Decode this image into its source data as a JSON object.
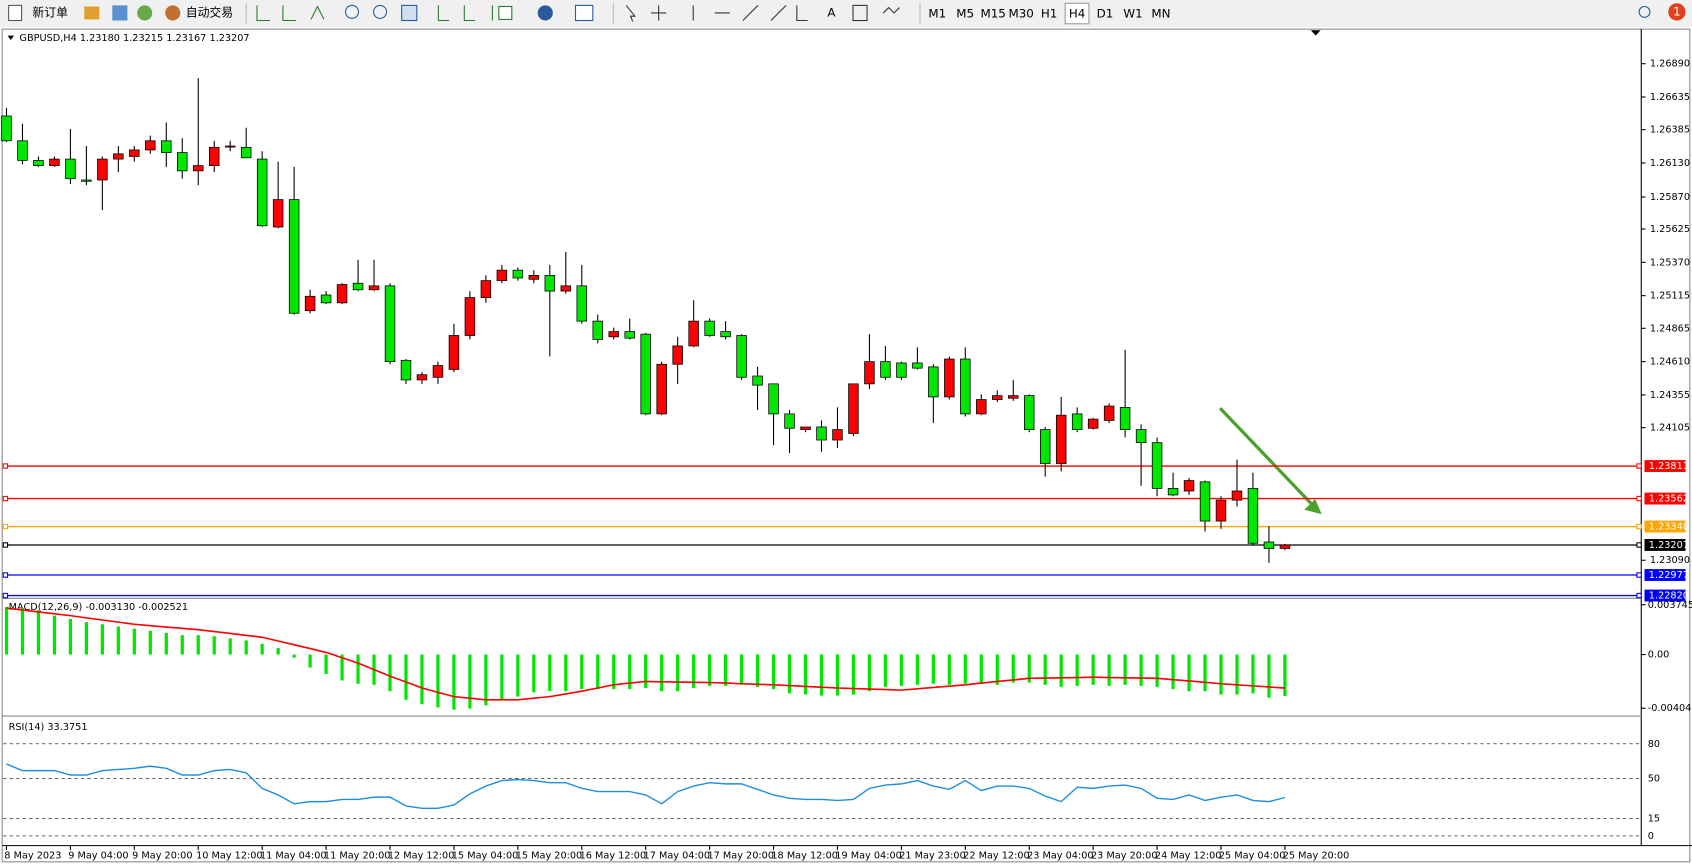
{
  "toolbar": {
    "buttons": [
      "新订单",
      "自动交易"
    ],
    "text_tool": "A",
    "timeframes": [
      "M1",
      "M5",
      "M15",
      "M30",
      "H1",
      "H4",
      "D1",
      "W1",
      "MN"
    ],
    "active_timeframe": 5,
    "notifications": 1
  },
  "chart_data": [
    {
      "type": "candlestick",
      "title": "GBPUSD,H4  1.23180 1.23215 1.23167 1.23207",
      "up_color": "#ff0000",
      "down_color": "#00e600",
      "categories": [
        "8 May 2023",
        null,
        null,
        null,
        "9 May 04:00",
        null,
        null,
        null,
        "9 May 20:00",
        null,
        null,
        null,
        "10 May 12:00",
        null,
        null,
        null,
        "11 May 04:00",
        null,
        null,
        null,
        "11 May 20:00",
        null,
        null,
        null,
        "12 May 12:00",
        null,
        null,
        null,
        "15 May 04:00",
        null,
        null,
        null,
        "15 May 20:00",
        null,
        null,
        null,
        "16 May 12:00",
        null,
        null,
        null,
        "17 May 04:00",
        null,
        null,
        null,
        "17 May 20:00",
        null,
        null,
        null,
        "18 May 12:00",
        null,
        null,
        null,
        "19 May 04:00",
        null,
        null,
        null,
        "21 May 23:00",
        null,
        null,
        null,
        "22 May 12:00",
        null,
        null,
        null,
        "23 May 04:00",
        null,
        null,
        null,
        "23 May 20:00",
        null,
        null,
        null,
        "24 May 12:00",
        null,
        null,
        null,
        "25 May 04:00",
        null,
        null,
        null,
        "25 May 20:00"
      ],
      "ohlc": [
        [
          1.2649,
          1.2655,
          1.2629,
          1.263
        ],
        [
          1.263,
          1.2643,
          1.2612,
          1.2615
        ],
        [
          1.2615,
          1.2618,
          1.261,
          1.2611
        ],
        [
          1.2611,
          1.2618,
          1.261,
          1.2616
        ],
        [
          1.2616,
          1.2639,
          1.2597,
          1.2601
        ],
        [
          1.26,
          1.2626,
          1.2596,
          1.2599
        ],
        [
          1.26,
          1.2618,
          1.2577,
          1.2616
        ],
        [
          1.2616,
          1.2626,
          1.2606,
          1.262
        ],
        [
          1.2618,
          1.2626,
          1.2614,
          1.2623
        ],
        [
          1.2623,
          1.2634,
          1.262,
          1.263
        ],
        [
          1.263,
          1.2644,
          1.261,
          1.2621
        ],
        [
          1.2621,
          1.2632,
          1.2601,
          1.2607
        ],
        [
          1.2607,
          1.2678,
          1.2596,
          1.2611
        ],
        [
          1.2611,
          1.263,
          1.2606,
          1.2625
        ],
        [
          1.2626,
          1.263,
          1.2622,
          1.2626
        ],
        [
          1.2625,
          1.264,
          1.2617,
          1.2617
        ],
        [
          1.2616,
          1.2622,
          1.2564,
          1.2565
        ],
        [
          1.2564,
          1.2614,
          1.2563,
          1.2585
        ],
        [
          1.2585,
          1.261,
          1.2497,
          1.2498
        ],
        [
          1.25,
          1.2516,
          1.2498,
          1.2511
        ],
        [
          1.2512,
          1.2515,
          1.2505,
          1.2506
        ],
        [
          1.2506,
          1.2521,
          1.2505,
          1.252
        ],
        [
          1.2521,
          1.2539,
          1.2515,
          1.2516
        ],
        [
          1.2516,
          1.2539,
          1.2515,
          1.2519
        ],
        [
          1.2519,
          1.2521,
          1.2459,
          1.2461
        ],
        [
          1.2462,
          1.2463,
          1.2444,
          1.2447
        ],
        [
          1.2447,
          1.2453,
          1.2444,
          1.2451
        ],
        [
          1.2449,
          1.2461,
          1.2444,
          1.2458
        ],
        [
          1.2455,
          1.249,
          1.2453,
          1.2481
        ],
        [
          1.2481,
          1.2515,
          1.2478,
          1.251
        ],
        [
          1.251,
          1.2527,
          1.2506,
          1.2523
        ],
        [
          1.2523,
          1.2535,
          1.2521,
          1.2531
        ],
        [
          1.2531,
          1.2533,
          1.2523,
          1.2525
        ],
        [
          1.2524,
          1.2531,
          1.2521,
          1.2527
        ],
        [
          1.2527,
          1.2535,
          1.2465,
          1.2515
        ],
        [
          1.2515,
          1.2545,
          1.2513,
          1.2519
        ],
        [
          1.2519,
          1.2535,
          1.249,
          1.2492
        ],
        [
          1.2492,
          1.2497,
          1.2475,
          1.2478
        ],
        [
          1.248,
          1.2487,
          1.2478,
          1.2484
        ],
        [
          1.2484,
          1.2494,
          1.2478,
          1.2479
        ],
        [
          1.2482,
          1.2483,
          1.242,
          1.2421
        ],
        [
          1.2421,
          1.2461,
          1.242,
          1.2459
        ],
        [
          1.2459,
          1.248,
          1.2444,
          1.2473
        ],
        [
          1.2473,
          1.2508,
          1.2472,
          1.2492
        ],
        [
          1.2492,
          1.2494,
          1.248,
          1.2481
        ],
        [
          1.2484,
          1.2492,
          1.2478,
          1.248
        ],
        [
          1.2481,
          1.2482,
          1.2447,
          1.2449
        ],
        [
          1.245,
          1.2457,
          1.2424,
          1.2443
        ],
        [
          1.2444,
          1.2444,
          1.2397,
          1.2421
        ],
        [
          1.2421,
          1.2424,
          1.2391,
          1.241
        ],
        [
          1.2409,
          1.2411,
          1.2407,
          1.2411
        ],
        [
          1.2411,
          1.2416,
          1.2392,
          1.2401
        ],
        [
          1.2401,
          1.2426,
          1.2395,
          1.2409
        ],
        [
          1.2406,
          1.2444,
          1.2404,
          1.2444
        ],
        [
          1.2444,
          1.2482,
          1.244,
          1.2461
        ],
        [
          1.2461,
          1.2473,
          1.2447,
          1.2449
        ],
        [
          1.246,
          1.2461,
          1.2447,
          1.2449
        ],
        [
          1.246,
          1.2472,
          1.2455,
          1.2456
        ],
        [
          1.2457,
          1.2459,
          1.2414,
          1.2434
        ],
        [
          1.2434,
          1.2465,
          1.2432,
          1.2463
        ],
        [
          1.2463,
          1.2472,
          1.2419,
          1.2421
        ],
        [
          1.2421,
          1.2436,
          1.242,
          1.2432
        ],
        [
          1.2432,
          1.2439,
          1.243,
          1.2435
        ],
        [
          1.2433,
          1.2447,
          1.2431,
          1.2435
        ],
        [
          1.2435,
          1.2436,
          1.2407,
          1.2409
        ],
        [
          1.2409,
          1.2411,
          1.2373,
          1.2383
        ],
        [
          1.2383,
          1.2434,
          1.2377,
          1.242
        ],
        [
          1.2421,
          1.2426,
          1.2407,
          1.2409
        ],
        [
          1.241,
          1.2418,
          1.2409,
          1.2417
        ],
        [
          1.2416,
          1.2429,
          1.2414,
          1.2427
        ],
        [
          1.2426,
          1.247,
          1.2403,
          1.2409
        ],
        [
          1.2409,
          1.2413,
          1.2366,
          1.2399
        ],
        [
          1.2399,
          1.2403,
          1.2358,
          1.2364
        ],
        [
          1.2364,
          1.2376,
          1.2358,
          1.2359
        ],
        [
          1.2362,
          1.2372,
          1.2359,
          1.237
        ],
        [
          1.2369,
          1.237,
          1.2331,
          1.2339
        ],
        [
          1.2339,
          1.2358,
          1.2333,
          1.2355
        ],
        [
          1.2355,
          1.2386,
          1.235,
          1.2362
        ],
        [
          1.2364,
          1.2376,
          1.2321,
          1.2322
        ],
        [
          1.2323,
          1.2335,
          1.2307,
          1.2318
        ],
        [
          1.2318,
          1.23215,
          1.23167,
          1.23207
        ]
      ],
      "ylim": [
        1.22807,
        1.27146
      ],
      "yticks": [
        {
          "value": 1.2689,
          "label": "1.26890"
        },
        1.26635,
        1.26385,
        {
          "value": 1.2613,
          "label": "1.26130"
        },
        {
          "value": 1.2587,
          "label": "1.25870"
        },
        1.25625,
        {
          "value": 1.2537,
          "label": "1.25370"
        },
        1.25115,
        1.24865,
        {
          "value": 1.2461,
          "label": "1.24610"
        },
        1.24355,
        1.24105,
        {
          "value": 1.2309,
          "label": "1.23090"
        }
      ],
      "levels": [
        {
          "value": 1.23811,
          "label": "1.23811",
          "color": "#ff0000"
        },
        {
          "value": 1.23562,
          "label": "1.23562",
          "color": "#ff0000"
        },
        {
          "value": 1.23348,
          "label": "1.23348",
          "color": "#ffa500"
        },
        {
          "value": 1.23207,
          "label": "1.23207",
          "color": "#000000"
        },
        {
          "value": 1.22977,
          "label": "1.22977",
          "color": "#0000ff"
        },
        {
          "value": 1.2282,
          "label": "1.22820",
          "color": "#0000ff"
        }
      ]
    },
    {
      "type": "macd",
      "title": "MACD(12,26,9) -0.003130 -0.002521",
      "color": "#00e600",
      "signal_color": "#ff0000",
      "histogram": [
        0.00358,
        0.0035,
        0.00333,
        0.00293,
        0.00268,
        0.00244,
        0.00228,
        0.00211,
        0.00195,
        0.00179,
        0.00163,
        0.00146,
        0.00146,
        0.00138,
        0.00122,
        0.00106,
        0.00081,
        0.00049,
        -0.00024,
        -0.00098,
        -0.00146,
        -0.00195,
        -0.0022,
        -0.00228,
        -0.00276,
        -0.00341,
        -0.00374,
        -0.00398,
        -0.00415,
        -0.00407,
        -0.00382,
        -0.00341,
        -0.00317,
        -0.00285,
        -0.00276,
        -0.00276,
        -0.0026,
        -0.0026,
        -0.0026,
        -0.0026,
        -0.00252,
        -0.00276,
        -0.00276,
        -0.00252,
        -0.00236,
        -0.00236,
        -0.00228,
        -0.00244,
        -0.0026,
        -0.00293,
        -0.00301,
        -0.00309,
        -0.00309,
        -0.00301,
        -0.00276,
        -0.00244,
        -0.00236,
        -0.00228,
        -0.0022,
        -0.00228,
        -0.0022,
        -0.0022,
        -0.00228,
        -0.00211,
        -0.00211,
        -0.00228,
        -0.00244,
        -0.00236,
        -0.00228,
        -0.00236,
        -0.00228,
        -0.00236,
        -0.00244,
        -0.0026,
        -0.00276,
        -0.00276,
        -0.00301,
        -0.00301,
        -0.00293,
        -0.00325,
        -0.00313
      ],
      "signal": [
        0.0035,
        0.00335,
        0.00321,
        0.00307,
        0.00293,
        0.00276,
        0.0026,
        0.00244,
        0.00228,
        0.00217,
        0.00207,
        0.00197,
        0.00187,
        0.00173,
        0.00159,
        0.00144,
        0.0013,
        0.00102,
        0.00073,
        0.00045,
        0.00016,
        -0.00024,
        -0.00065,
        -0.00114,
        -0.00163,
        -0.00207,
        -0.00252,
        -0.00285,
        -0.00317,
        -0.00329,
        -0.00341,
        -0.00341,
        -0.00341,
        -0.00329,
        -0.00317,
        -0.00297,
        -0.00276,
        -0.00252,
        -0.00228,
        -0.00215,
        -0.00203,
        -0.00205,
        -0.00207,
        -0.00209,
        -0.00211,
        -0.00215,
        -0.0022,
        -0.00224,
        -0.00228,
        -0.00234,
        -0.0024,
        -0.00246,
        -0.00252,
        -0.00256,
        -0.0026,
        -0.00264,
        -0.00268,
        -0.00258,
        -0.00248,
        -0.00238,
        -0.00228,
        -0.00215,
        -0.00203,
        -0.00191,
        -0.00179,
        -0.00177,
        -0.00175,
        -0.00173,
        -0.00171,
        -0.00173,
        -0.00175,
        -0.00177,
        -0.00179,
        -0.00189,
        -0.00199,
        -0.00209,
        -0.0022,
        -0.00228,
        -0.00236,
        -0.00244,
        -0.002521
      ],
      "ylim": [
        -0.00455,
        0.00407
      ],
      "yticks": [
        0.003745,
        {
          "value": 0,
          "label": "0.00"
        },
        -0.004041
      ]
    },
    {
      "type": "rsi",
      "title": "RSI(14) 33.3751",
      "color": "#1e8fe0",
      "values": [
        62.5,
        56.7,
        56.7,
        56.7,
        52.9,
        52.9,
        56.7,
        57.7,
        58.7,
        60.6,
        58.7,
        52.9,
        52.9,
        56.7,
        57.7,
        54.8,
        41.3,
        35.6,
        27.9,
        29.8,
        29.8,
        31.7,
        31.7,
        33.7,
        33.7,
        26.0,
        24.0,
        24.0,
        26.9,
        36.5,
        43.3,
        48.1,
        49.0,
        48.1,
        46.2,
        46.2,
        41.3,
        38.5,
        38.5,
        38.5,
        35.6,
        27.9,
        38.5,
        43.3,
        46.2,
        45.2,
        45.2,
        40.4,
        35.6,
        32.7,
        31.7,
        31.7,
        30.8,
        31.7,
        41.3,
        44.2,
        45.2,
        48.1,
        43.3,
        40.4,
        48.1,
        39.4,
        43.3,
        43.3,
        41.3,
        34.6,
        29.8,
        42.3,
        41.3,
        43.3,
        44.2,
        41.3,
        32.7,
        31.7,
        35.6,
        30.8,
        33.7,
        35.6,
        30.8,
        29.8,
        33.3751
      ],
      "ylim": [
        -8.4,
        102.2
      ],
      "yticks": [
        80,
        50,
        15,
        0
      ]
    }
  ]
}
